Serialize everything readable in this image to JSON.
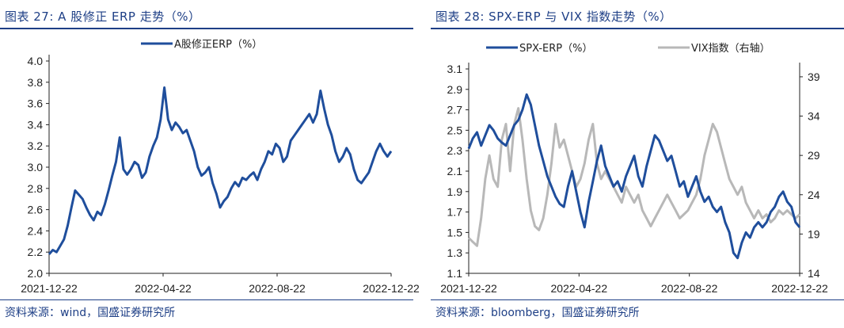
{
  "left": {
    "title": "图表 27:  A 股修正 ERP 走势（%）",
    "source": "资料来源：wind，国盛证券研究所",
    "chart_data": {
      "type": "line",
      "ylim": [
        2.0,
        4.0
      ],
      "yticks": [
        "2.0",
        "2.2",
        "2.4",
        "2.6",
        "2.8",
        "3.0",
        "3.2",
        "3.4",
        "3.6",
        "3.8",
        "4.0"
      ],
      "xticks": [
        "2021-12-22",
        "2022-04-22",
        "2022-08-22",
        "2022-12-22"
      ],
      "series": [
        {
          "name": "A股修正ERP（%）",
          "color": "#1f4e9c",
          "values": [
            2.18,
            2.22,
            2.2,
            2.26,
            2.32,
            2.45,
            2.62,
            2.78,
            2.74,
            2.7,
            2.62,
            2.55,
            2.5,
            2.58,
            2.55,
            2.65,
            2.78,
            2.92,
            3.05,
            3.28,
            2.98,
            2.93,
            2.98,
            3.05,
            3.02,
            2.9,
            2.95,
            3.1,
            3.2,
            3.28,
            3.45,
            3.75,
            3.45,
            3.35,
            3.42,
            3.38,
            3.32,
            3.35,
            3.25,
            3.15,
            3.0,
            2.92,
            2.95,
            3.0,
            2.85,
            2.75,
            2.62,
            2.68,
            2.72,
            2.8,
            2.86,
            2.82,
            2.9,
            2.88,
            2.92,
            2.95,
            2.88,
            2.98,
            3.05,
            3.15,
            3.12,
            3.22,
            3.18,
            3.05,
            3.1,
            3.25,
            3.3,
            3.35,
            3.4,
            3.45,
            3.5,
            3.42,
            3.5,
            3.72,
            3.55,
            3.4,
            3.3,
            3.15,
            3.05,
            3.1,
            3.18,
            3.12,
            2.98,
            2.88,
            2.85,
            2.9,
            2.95,
            3.05,
            3.15,
            3.22,
            3.15,
            3.1,
            3.15
          ]
        }
      ]
    }
  },
  "right": {
    "title": "图表 28:  SPX-ERP 与 VIX 指数走势（%）",
    "source": "资料来源：bloomberg，国盛证券研究所",
    "chart_data": {
      "type": "line",
      "ylim": [
        1.1,
        3.1
      ],
      "y2lim": [
        14,
        40
      ],
      "yticks": [
        "1.1",
        "1.3",
        "1.5",
        "1.7",
        "1.9",
        "2.1",
        "2.3",
        "2.5",
        "2.7",
        "2.9",
        "3.1"
      ],
      "y2ticks": [
        "14",
        "19",
        "24",
        "29",
        "34",
        "39"
      ],
      "xticks": [
        "2021-12-22",
        "2022-04-22",
        "2022-08-22",
        "2022-12-22"
      ],
      "series": [
        {
          "name": "SPX-ERP（%）",
          "color": "#1f4e9c",
          "axis": "left",
          "values": [
            2.32,
            2.42,
            2.48,
            2.35,
            2.45,
            2.55,
            2.5,
            2.42,
            2.38,
            2.35,
            2.45,
            2.55,
            2.6,
            2.7,
            2.85,
            2.75,
            2.55,
            2.35,
            2.2,
            2.05,
            1.95,
            1.85,
            1.78,
            1.75,
            1.95,
            2.1,
            1.9,
            1.7,
            1.55,
            1.8,
            2.0,
            2.2,
            2.35,
            2.15,
            2.05,
            1.95,
            2.0,
            1.9,
            2.05,
            2.15,
            2.25,
            2.05,
            1.95,
            2.15,
            2.3,
            2.45,
            2.4,
            2.3,
            2.2,
            2.25,
            2.1,
            1.95,
            2.0,
            1.85,
            1.95,
            2.05,
            1.9,
            1.8,
            1.85,
            1.75,
            1.7,
            1.75,
            1.6,
            1.5,
            1.3,
            1.25,
            1.4,
            1.5,
            1.45,
            1.55,
            1.6,
            1.55,
            1.6,
            1.7,
            1.75,
            1.85,
            1.9,
            1.8,
            1.75,
            1.6,
            1.55
          ]
        },
        {
          "name": "VIX指数（右轴）",
          "color": "#b8b8b8",
          "axis": "right",
          "values": [
            18.5,
            18.0,
            17.5,
            21.0,
            26.0,
            29.0,
            26.0,
            25.0,
            31.0,
            33.0,
            27.0,
            33.0,
            35.0,
            31.0,
            26.0,
            22.0,
            20.0,
            19.5,
            21.0,
            24.0,
            28.0,
            33.0,
            30.0,
            31.0,
            29.0,
            27.0,
            25.0,
            26.0,
            28.0,
            31.0,
            33.0,
            28.0,
            26.0,
            27.0,
            26.0,
            25.0,
            24.0,
            23.0,
            25.0,
            24.0,
            23.0,
            24.0,
            22.0,
            21.0,
            20.0,
            21.0,
            22.0,
            23.0,
            24.0,
            23.0,
            22.0,
            21.0,
            21.5,
            22.0,
            23.0,
            24.0,
            26.0,
            29.0,
            31.0,
            33.0,
            32.0,
            30.0,
            28.0,
            26.0,
            25.0,
            24.0,
            25.0,
            23.0,
            22.0,
            21.0,
            22.0,
            21.0,
            21.5,
            20.5,
            21.0,
            22.0,
            21.5,
            22.0,
            21.5,
            21.0,
            21.5
          ]
        }
      ]
    }
  }
}
